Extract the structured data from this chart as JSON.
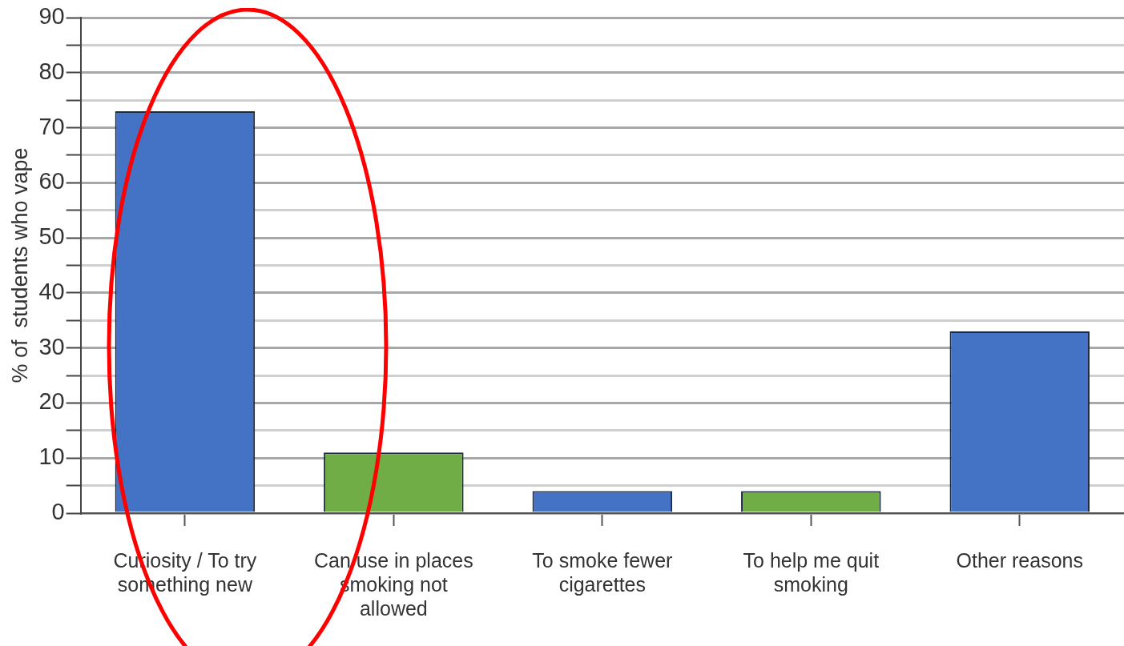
{
  "chart_data": {
    "type": "bar",
    "ylabel": "% of  students who vape",
    "categories": [
      "Curiosity / To try something new",
      "Can use in places smoking not allowed",
      "To smoke fewer cigarettes",
      "To help me quit smoking",
      "Other reasons"
    ],
    "values": [
      73,
      11,
      4,
      4,
      33
    ],
    "colors": [
      "#4472c4",
      "#70ad47",
      "#4472c4",
      "#70ad47",
      "#4472c4"
    ],
    "ylim": [
      0,
      90
    ],
    "yticks": [
      0,
      {
        "value": 5,
        "label": null
      },
      10,
      {
        "value": 15,
        "label": null
      },
      20,
      {
        "value": 25,
        "label": null
      },
      30,
      {
        "value": 35,
        "label": null
      },
      40,
      {
        "value": 45,
        "label": null
      },
      50,
      {
        "value": 55,
        "label": null
      },
      60,
      {
        "value": 65,
        "label": null
      },
      70,
      {
        "value": 75,
        "label": null
      },
      80,
      {
        "value": 85,
        "label": null
      },
      90
    ],
    "grid": "y"
  }
}
